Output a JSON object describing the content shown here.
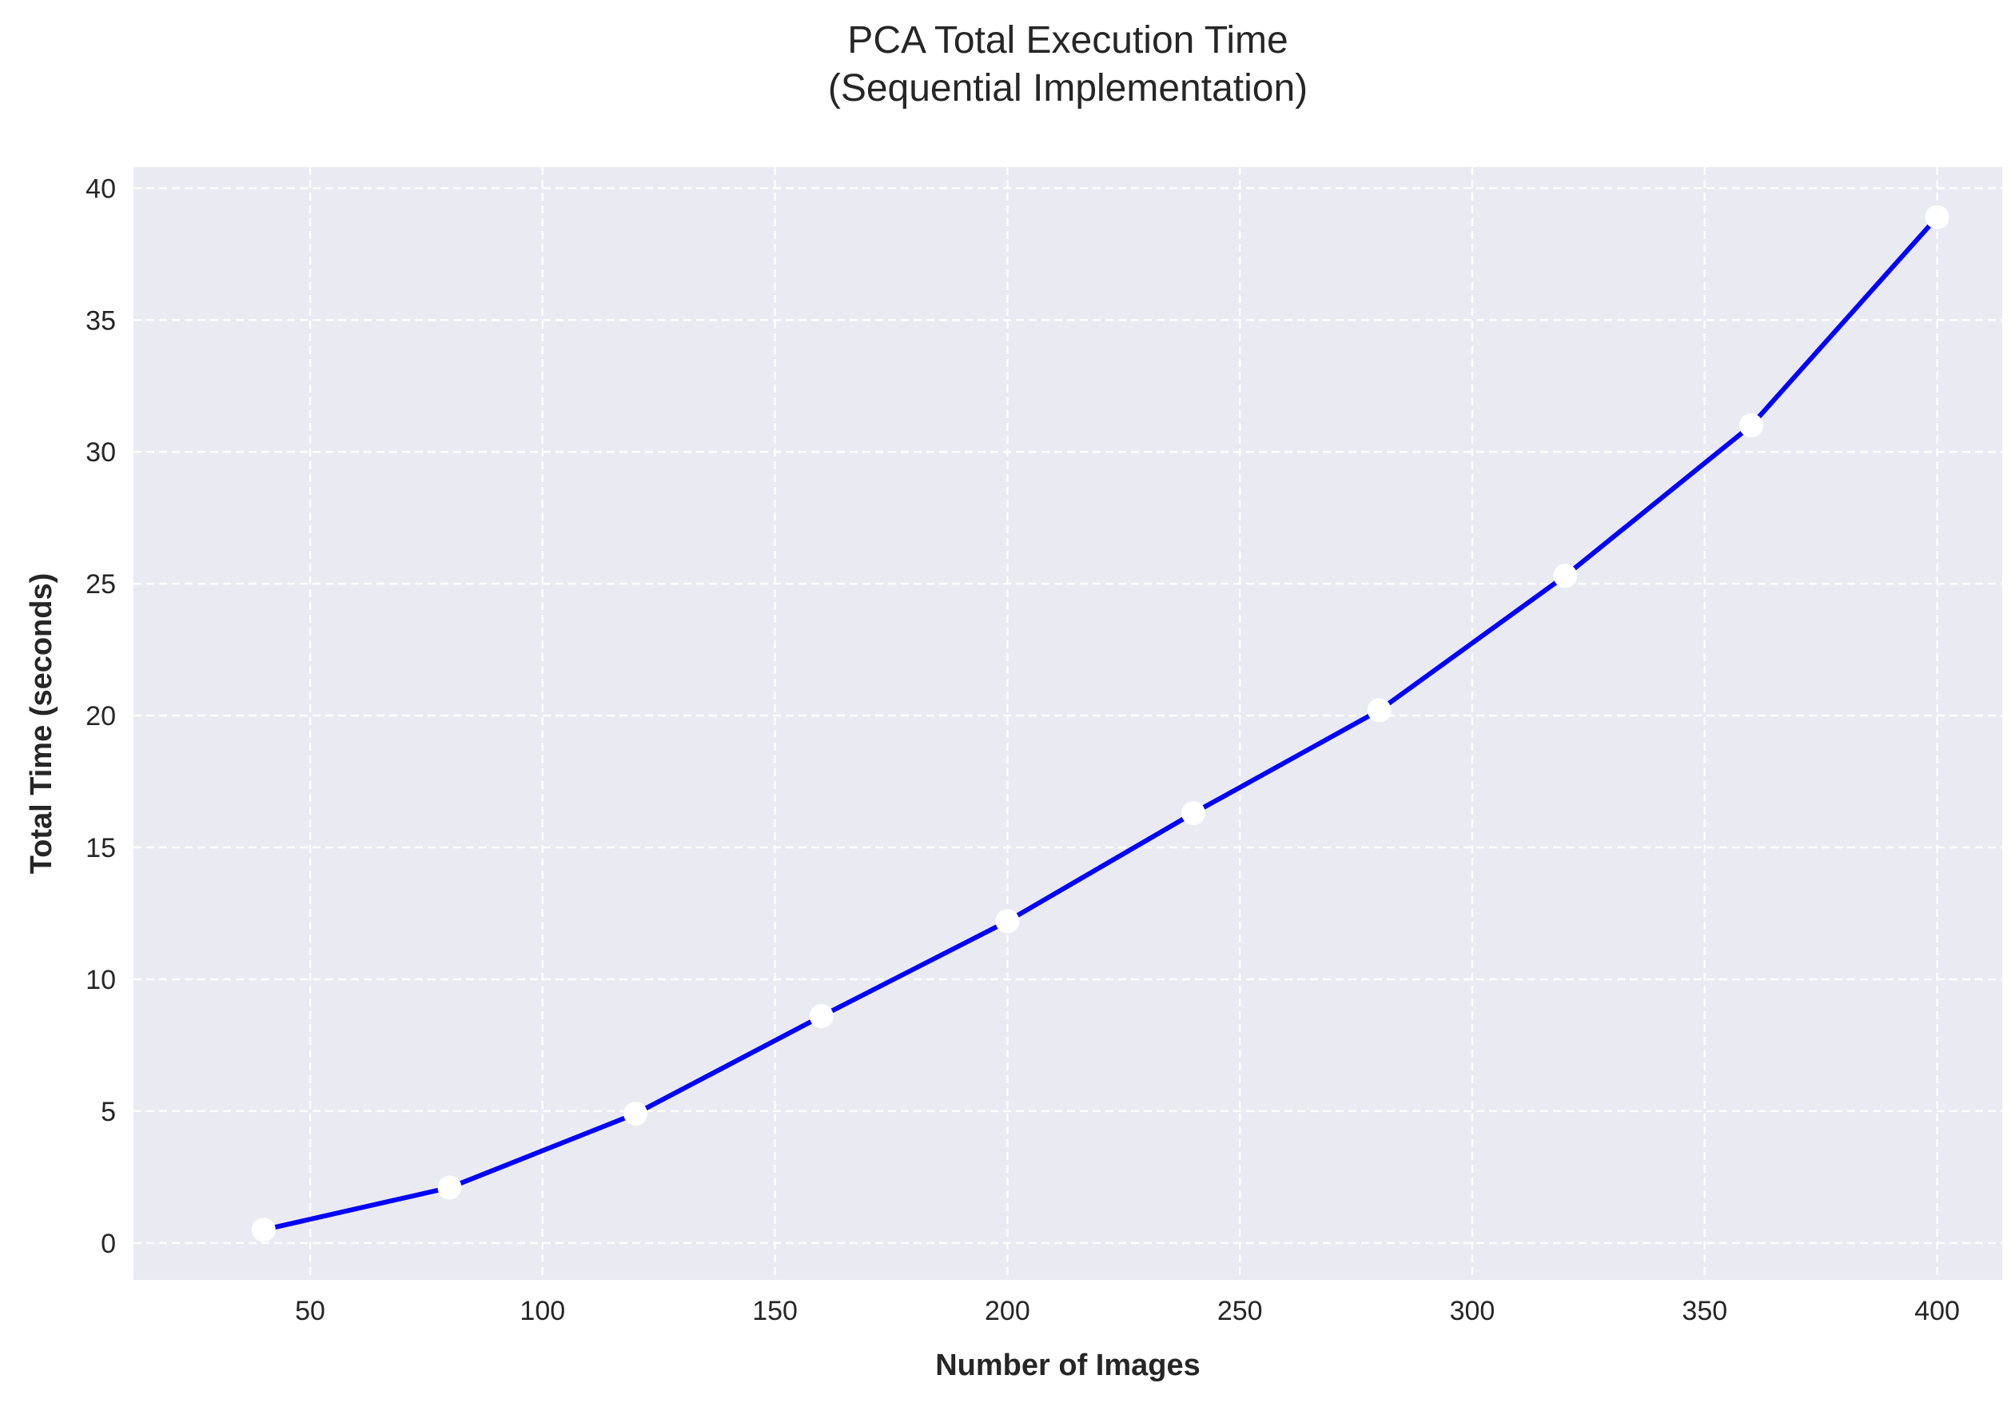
{
  "chart_data": {
    "type": "line",
    "title_lines": [
      "PCA Total Execution Time",
      "(Sequential Implementation)"
    ],
    "xlabel": "Number of Images",
    "ylabel": "Total Time (seconds)",
    "x": [
      40,
      80,
      120,
      160,
      200,
      240,
      280,
      320,
      360,
      400
    ],
    "series": [
      {
        "values": [
          0.5,
          2.1,
          4.9,
          8.6,
          12.2,
          16.3,
          20.2,
          25.3,
          31.0,
          38.9
        ]
      }
    ],
    "xlim": [
      12,
      414
    ],
    "ylim": [
      -1.4,
      40.8
    ],
    "xticks": [
      50,
      100,
      150,
      200,
      250,
      300,
      350,
      400
    ],
    "yticks": [
      0,
      5,
      10,
      15,
      20,
      25,
      30,
      35,
      40
    ],
    "grid": true,
    "colors": {
      "line": "#0000ff",
      "marker": "#ffffff",
      "plot_bg": "#eaeaf2",
      "grid": "#ffffff"
    }
  }
}
